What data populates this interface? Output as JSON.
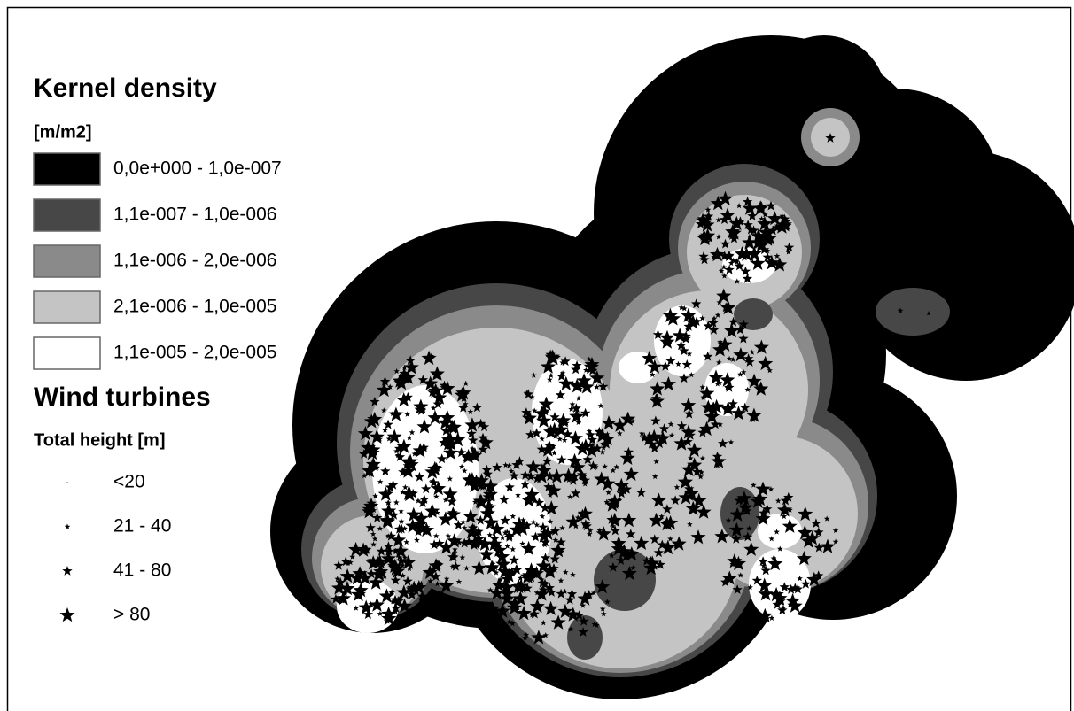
{
  "legend": {
    "density": {
      "title": "Kernel density",
      "unit": "[m/m2]",
      "classes": [
        {
          "label": "0,0e+000 - 1,0e-007",
          "color": "#000000"
        },
        {
          "label": "1,1e-007 - 1,0e-006",
          "color": "#474747"
        },
        {
          "label": "1,1e-006 - 2,0e-006",
          "color": "#8a8a8a"
        },
        {
          "label": "2,1e-006 - 1,0e-005",
          "color": "#c4c4c4"
        },
        {
          "label": "1,1e-005 - 2,0e-005",
          "color": "#ffffff"
        }
      ]
    },
    "turbines": {
      "title": "Wind turbines",
      "subtitle": "Total height [m]",
      "classes": [
        {
          "label": "<20"
        },
        {
          "label": "21 - 40"
        },
        {
          "label": "41 - 80"
        },
        {
          "label": "> 80"
        }
      ]
    }
  }
}
